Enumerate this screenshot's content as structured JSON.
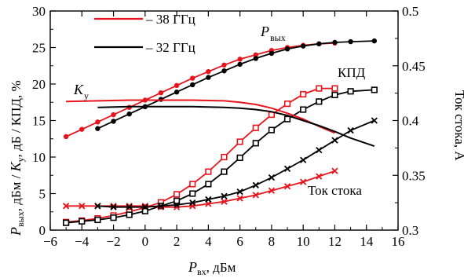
{
  "chart_data": {
    "type": "line",
    "x_axis": {
      "label_main": "P",
      "label_sub": "вх",
      "label_rest": ", дБм",
      "range": [
        -6,
        16
      ],
      "ticks": [
        "−6",
        "−4",
        "−2",
        "0",
        "2",
        "4",
        "6",
        "8",
        "10",
        "12",
        "14",
        "16"
      ]
    },
    "y_left": {
      "label_parts": [
        "P",
        "вых",
        ", дБм / ",
        "K",
        "у",
        ", дБ / КПД, %"
      ],
      "range": [
        0,
        30
      ],
      "ticks": [
        "0",
        "5",
        "10",
        "15",
        "20",
        "25",
        "30"
      ]
    },
    "y_right": {
      "label": "Ток стока, А",
      "range": [
        0.3,
        0.5
      ],
      "ticks": [
        "0.3",
        "0.35",
        "0.4",
        "0.45",
        "0.5"
      ]
    },
    "legend": {
      "position": "top-left",
      "entries": [
        {
          "label": "– 38 ГГц",
          "color": "#e8141c"
        },
        {
          "label": "– 32 ГГц",
          "color": "#000000"
        }
      ]
    },
    "annotations": {
      "pout_main": "P",
      "pout_sub": "вых",
      "ku_main": "K",
      "ku_sub": "у",
      "eff": "КПД",
      "current": "Ток стока"
    },
    "series": [
      {
        "name": "P вых 38 ГГц",
        "color": "#e8141c",
        "marker": "circle",
        "axis": "left",
        "x": [
          -5,
          -4,
          -3,
          -2,
          -1,
          0,
          1,
          2,
          3,
          4,
          5,
          6,
          7,
          8,
          9,
          10,
          11,
          12
        ],
        "y": [
          12.8,
          13.8,
          14.8,
          15.8,
          16.8,
          17.8,
          18.8,
          19.8,
          20.8,
          21.7,
          22.6,
          23.4,
          24.0,
          24.6,
          25.0,
          25.3,
          25.5,
          25.6
        ]
      },
      {
        "name": "P вых 32 ГГц",
        "color": "#000000",
        "marker": "circle",
        "axis": "left",
        "x": [
          -3,
          -2,
          -1,
          0,
          1,
          2,
          3,
          4,
          5,
          6,
          7,
          8,
          9,
          10,
          11,
          12,
          13,
          14.5
        ],
        "y": [
          13.9,
          14.9,
          15.9,
          16.9,
          17.9,
          18.9,
          19.9,
          20.9,
          21.8,
          22.7,
          23.5,
          24.2,
          24.8,
          25.2,
          25.5,
          25.7,
          25.8,
          25.9
        ]
      },
      {
        "name": "КПД 38 ГГц",
        "color": "#e8141c",
        "marker": "square",
        "axis": "left",
        "x": [
          -5,
          -4,
          -3,
          -2,
          -1,
          0,
          1,
          2,
          3,
          4,
          5,
          6,
          7,
          8,
          9,
          10,
          11,
          12
        ],
        "y": [
          1.1,
          1.3,
          1.6,
          2.0,
          2.5,
          3.1,
          3.8,
          4.9,
          6.3,
          8.0,
          10.0,
          12.1,
          14.0,
          15.8,
          17.3,
          18.6,
          19.4,
          19.4
        ]
      },
      {
        "name": "КПД 32 ГГц",
        "color": "#000000",
        "marker": "square",
        "axis": "left",
        "x": [
          -5,
          -4,
          -3,
          -2,
          -1,
          0,
          1,
          2,
          3,
          4,
          5,
          6,
          7,
          8,
          9,
          10,
          11,
          12,
          13,
          14.5
        ],
        "y": [
          1.0,
          1.2,
          1.4,
          1.7,
          2.1,
          2.6,
          3.3,
          4.0,
          5.0,
          6.3,
          8.0,
          9.9,
          11.9,
          13.7,
          15.2,
          16.5,
          17.6,
          18.5,
          19.0,
          19.2
        ]
      },
      {
        "name": "Ток стока 38 ГГц",
        "color": "#e8141c",
        "marker": "cross",
        "axis": "right",
        "x": [
          -5,
          -4,
          -3,
          -2,
          -1,
          0,
          1,
          2,
          3,
          4,
          5,
          6,
          7,
          8,
          9,
          10,
          11,
          12
        ],
        "y": [
          0.322,
          0.322,
          0.322,
          0.322,
          0.322,
          0.322,
          0.321,
          0.321,
          0.322,
          0.324,
          0.326,
          0.329,
          0.332,
          0.336,
          0.34,
          0.344,
          0.349,
          0.354
        ]
      },
      {
        "name": "Ток стока 32 ГГц",
        "color": "#000000",
        "marker": "cross",
        "axis": "right",
        "x": [
          -3,
          -2,
          -1,
          0,
          1,
          2,
          3,
          4,
          5,
          6,
          7,
          8,
          9,
          10,
          11,
          12,
          13,
          14.5
        ],
        "y": [
          0.322,
          0.321,
          0.321,
          0.321,
          0.322,
          0.323,
          0.325,
          0.328,
          0.331,
          0.335,
          0.341,
          0.348,
          0.356,
          0.364,
          0.373,
          0.382,
          0.391,
          0.4
        ]
      },
      {
        "name": "K у 38 ГГц",
        "color": "#e8141c",
        "marker": "none",
        "axis": "left",
        "x": [
          -5,
          -3,
          -1,
          1,
          3,
          5,
          6,
          7,
          8,
          9,
          10,
          11,
          12
        ],
        "y": [
          17.6,
          17.7,
          17.8,
          17.8,
          17.8,
          17.7,
          17.5,
          17.2,
          16.7,
          16.0,
          15.2,
          14.2,
          13.3
        ]
      },
      {
        "name": "K у 32 ГГц",
        "color": "#000000",
        "marker": "none",
        "axis": "left",
        "x": [
          -3,
          -1,
          1,
          3,
          5,
          6,
          7,
          8,
          9,
          10,
          11,
          12,
          13,
          14.5
        ],
        "y": [
          16.8,
          16.9,
          16.9,
          16.9,
          16.8,
          16.7,
          16.5,
          16.2,
          15.7,
          15.0,
          14.3,
          13.5,
          12.6,
          11.5
        ]
      }
    ]
  }
}
